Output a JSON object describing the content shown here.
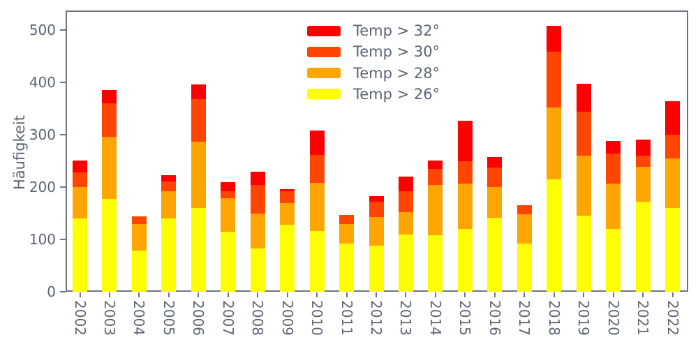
{
  "style": {
    "background": "#ffffff",
    "text_color": "#5b6573",
    "spine_color": "#6e7682"
  },
  "chart_data": {
    "type": "bar",
    "stacked": true,
    "title": "",
    "xlabel": "",
    "ylabel": "Häufigkeit",
    "grid": false,
    "legend_position": "upper center, frameless",
    "ylim": [
      0,
      537
    ],
    "yticks": [
      0,
      100,
      200,
      300,
      400,
      500
    ],
    "categories": [
      "2002",
      "2003",
      "2004",
      "2005",
      "2006",
      "2007",
      "2008",
      "2009",
      "2010",
      "2011",
      "2012",
      "2013",
      "2014",
      "2015",
      "2016",
      "2017",
      "2018",
      "2019",
      "2020",
      "2021",
      "2022"
    ],
    "series": [
      {
        "name": "Temp > 26°",
        "color": "#ffff00",
        "values": [
          140,
          177,
          78,
          139,
          159,
          114,
          82,
          128,
          115,
          92,
          88,
          109,
          108,
          120,
          141,
          92,
          214,
          145,
          120,
          171,
          160
        ]
      },
      {
        "name": "Temp > 28°",
        "color": "#ffa500",
        "values": [
          60,
          118,
          51,
          53,
          127,
          64,
          67,
          41,
          93,
          37,
          54,
          43,
          96,
          86,
          59,
          56,
          138,
          115,
          86,
          67,
          94
        ]
      },
      {
        "name": "Temp > 30°",
        "color": "#ff4500",
        "values": [
          27,
          64,
          15,
          18,
          82,
          14,
          55,
          23,
          53,
          17,
          29,
          40,
          30,
          43,
          37,
          17,
          106,
          83,
          57,
          22,
          45
        ]
      },
      {
        "name": "Temp > 32°",
        "color": "#ff0000",
        "values": [
          23,
          26,
          0,
          12,
          27,
          17,
          25,
          4,
          47,
          0,
          11,
          28,
          16,
          77,
          20,
          0,
          50,
          54,
          24,
          30,
          65
        ]
      }
    ],
    "legend_order": [
      "Temp > 32°",
      "Temp > 30°",
      "Temp > 28°",
      "Temp > 26°"
    ],
    "stack_totals": [
      250,
      385,
      144,
      222,
      395,
      209,
      229,
      196,
      308,
      146,
      182,
      220,
      250,
      326,
      257,
      165,
      508,
      397,
      287,
      290,
      364
    ]
  }
}
